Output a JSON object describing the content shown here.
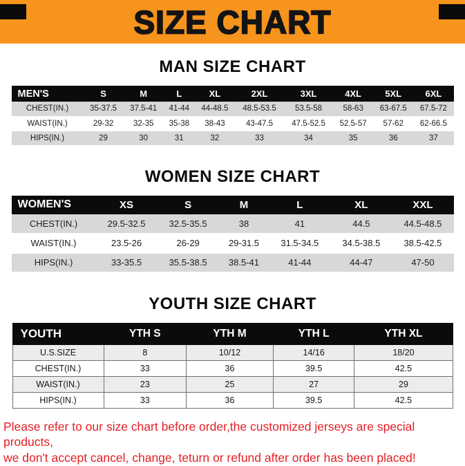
{
  "colors": {
    "banner_bg": "#F7941D",
    "header_bar_bg": "#0B0B0B",
    "row_shade": "#D8D8D8",
    "youth_row_shade": "#ECECEC",
    "footer_red": "#E31E24"
  },
  "banner": {
    "title": "SIZE CHART"
  },
  "sections": [
    {
      "heading": "MAN SIZE CHART",
      "table": {
        "header": [
          "MEN'S",
          "S",
          "M",
          "L",
          "XL",
          "2XL",
          "3XL",
          "4XL",
          "5XL",
          "6XL"
        ],
        "rows": [
          [
            "CHEST(IN.)",
            "35-37.5",
            "37.5-41",
            "41-44",
            "44-48.5",
            "48.5-53.5",
            "53.5-58",
            "58-63",
            "63-67.5",
            "67.5-72"
          ],
          [
            "WAIST(IN.)",
            "29-32",
            "32-35",
            "35-38",
            "38-43",
            "43-47.5",
            "47.5-52.5",
            "52.5-57",
            "57-62",
            "62-66.5"
          ],
          [
            "HIPS(IN.)",
            "29",
            "30",
            "31",
            "32",
            "33",
            "34",
            "35",
            "36",
            "37"
          ]
        ]
      }
    },
    {
      "heading": "WOMEN SIZE CHART",
      "table": {
        "header": [
          "WOMEN'S",
          "XS",
          "S",
          "M",
          "L",
          "XL",
          "XXL"
        ],
        "rows": [
          [
            "CHEST(IN.)",
            "29.5-32.5",
            "32.5-35.5",
            "38",
            "41",
            "44.5",
            "44.5-48.5"
          ],
          [
            "WAIST(IN.)",
            "23.5-26",
            "26-29",
            "29-31.5",
            "31.5-34.5",
            "34.5-38.5",
            "38.5-42.5"
          ],
          [
            "HIPS(IN.)",
            "33-35.5",
            "35.5-38.5",
            "38.5-41",
            "41-44",
            "44-47",
            "47-50"
          ]
        ]
      }
    },
    {
      "heading": "YOUTH SIZE CHART",
      "table": {
        "header": [
          "YOUTH",
          "YTH S",
          "YTH M",
          "YTH L",
          "YTH XL"
        ],
        "rows": [
          [
            "U.S.SIZE",
            "8",
            "10/12",
            "14/16",
            "18/20"
          ],
          [
            "CHEST(IN.)",
            "33",
            "36",
            "39.5",
            "42.5"
          ],
          [
            "WAIST(IN.)",
            "23",
            "25",
            "27",
            "29"
          ],
          [
            "HIPS(IN.)",
            "33",
            "36",
            "39.5",
            "42.5"
          ]
        ]
      }
    }
  ],
  "footer": {
    "line1": "Please refer to our size chart before order,the customized jerseys are special products,",
    "line2": "we don't accept cancel, change, teturn or refund after order has been placed!"
  }
}
